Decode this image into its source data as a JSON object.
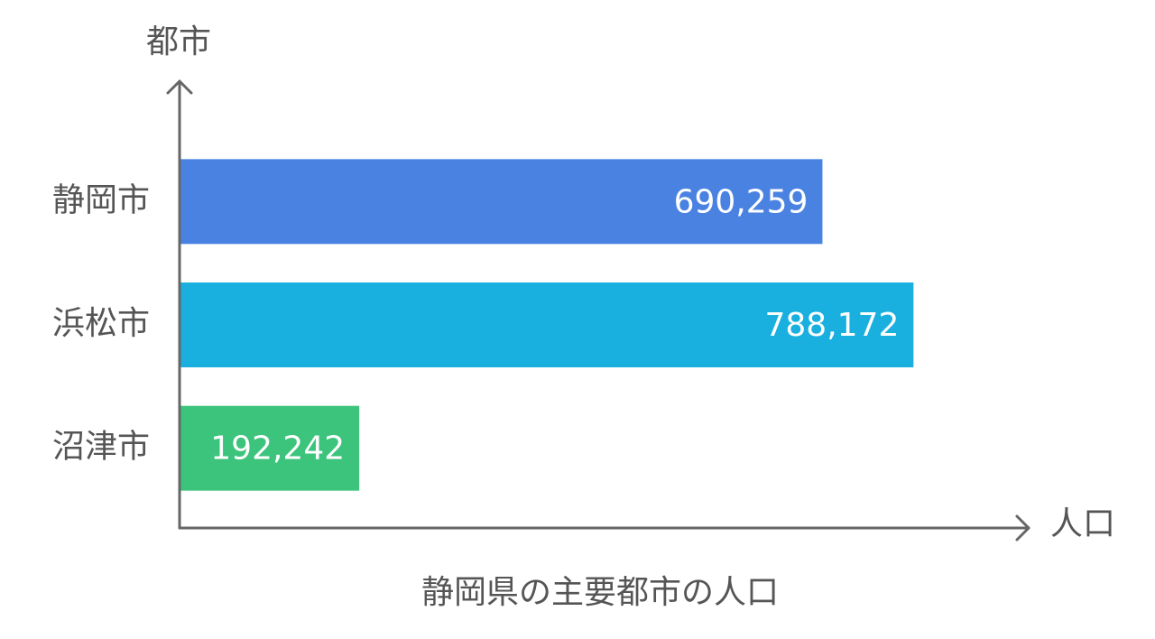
{
  "chart_data": {
    "type": "bar",
    "orientation": "horizontal",
    "title": "静岡県の主要都市の人口",
    "y_label": "都市",
    "x_label": "人口",
    "categories": [
      "静岡市",
      "浜松市",
      "沼津市"
    ],
    "values": [
      690259,
      788172,
      192242
    ],
    "value_labels": [
      "690,259",
      "788,172",
      "192,242"
    ],
    "colors": [
      "#4a82e2",
      "#19b0e0",
      "#3cc47c"
    ],
    "xlim": [
      0,
      912000
    ]
  }
}
